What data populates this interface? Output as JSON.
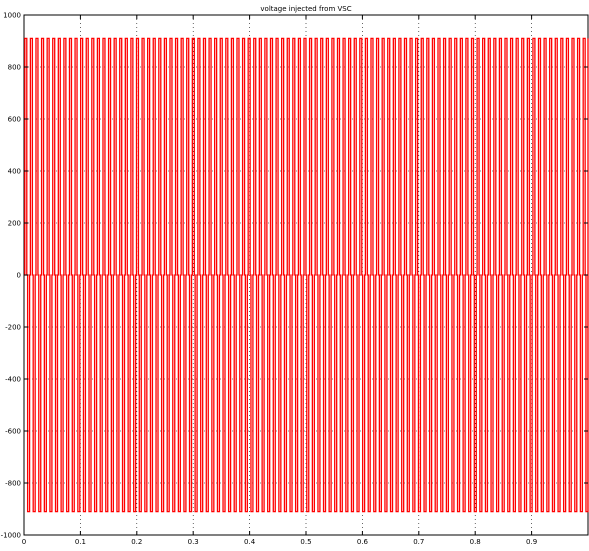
{
  "chart_data": {
    "type": "line",
    "title": "voltage injected from VSC",
    "xlabel": "",
    "ylabel": "",
    "xlim": [
      0,
      1
    ],
    "ylim": [
      -1000,
      1000
    ],
    "x_ticks": [
      0,
      0.1,
      0.2,
      0.3,
      0.4,
      0.5,
      0.6,
      0.7,
      0.8,
      0.9
    ],
    "x_tick_labels": [
      "0",
      "0.1",
      "0.2",
      "0.3",
      "0.4",
      "0.5",
      "0.6",
      "0.7",
      "0.8",
      "0.9"
    ],
    "y_ticks": [
      1000,
      800,
      600,
      400,
      200,
      0,
      -200,
      -400,
      -600,
      -800,
      -1000
    ],
    "y_tick_labels": [
      "1000",
      "800",
      "600",
      "400",
      "200",
      "0",
      "-200",
      "-400",
      "-600",
      "-800",
      "-1000"
    ],
    "grid": true,
    "line_color": "#ff0000",
    "series": [
      {
        "waveform": "PWM bipolar pulse train",
        "pulse_amplitude_positive": 910,
        "pulse_amplitude_negative": -910,
        "baseline": 0,
        "pulse_period": 0.0099,
        "positive_pulse_width": 0.0035,
        "negative_pulse_width": 0.0035,
        "start_x": 0.0,
        "end_x": 1.0
      }
    ]
  }
}
